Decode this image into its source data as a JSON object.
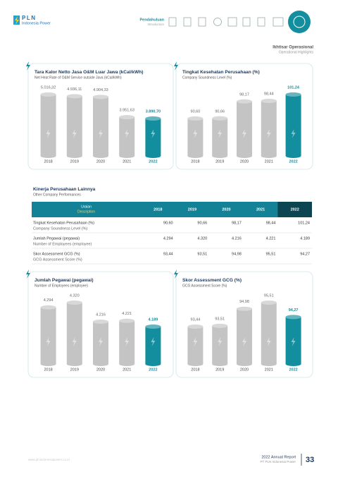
{
  "header": {
    "logo": "PLN",
    "logo_sub": "Indonesia Power",
    "section": "Pendahuluan",
    "section_en": "Introduction",
    "page_title": "Ikhtisar Operasional",
    "page_title_en": "Operational Highlights"
  },
  "chart_data": [
    {
      "type": "bar",
      "title": "Tara Kalor Netto Jasa O&M Luar Jawa (kCal/kWh)",
      "subtitle": "Net Heat Rate of O&M Service outside Java (kCal/kWh)",
      "categories": [
        "2018",
        "2019",
        "2020",
        "2021",
        "2022"
      ],
      "values": [
        5016.32,
        4936.11,
        4904.33,
        3951.63,
        3890.7
      ],
      "value_labels": [
        "5.016,32",
        "4.936,11",
        "4.904,33",
        "3.951,63",
        "3.890,70"
      ],
      "colors": [
        "#c4c4c4",
        "#c4c4c4",
        "#c4c4c4",
        "#c4c4c4",
        "#138e9e"
      ]
    },
    {
      "type": "bar",
      "title": "Tingkat Kesehatan Perusahaan (%)",
      "subtitle": "Company Soundness Level (%)",
      "categories": [
        "2018",
        "2019",
        "2020",
        "2021",
        "2022"
      ],
      "values": [
        90.6,
        90.66,
        98.17,
        98.44,
        101.24
      ],
      "value_labels": [
        "90,60",
        "90,66",
        "98,17",
        "98,44",
        "101,24"
      ],
      "colors": [
        "#c4c4c4",
        "#c4c4c4",
        "#c4c4c4",
        "#c4c4c4",
        "#138e9e"
      ]
    },
    {
      "type": "bar",
      "title": "Jumlah Pegawai (pegawai)",
      "subtitle": "Number of Employees (employee)",
      "categories": [
        "2018",
        "2019",
        "2020",
        "2021",
        "2022"
      ],
      "values": [
        4294,
        4320,
        4216,
        4221,
        4189
      ],
      "value_labels": [
        "4.294",
        "4.320",
        "4.216",
        "4.221",
        "4.189"
      ],
      "colors": [
        "#c4c4c4",
        "#c4c4c4",
        "#c4c4c4",
        "#c4c4c4",
        "#138e9e"
      ]
    },
    {
      "type": "bar",
      "title": "Skor Assessment GCG (%)",
      "subtitle": "GCG Assessment Score (%)",
      "categories": [
        "2018",
        "2019",
        "2020",
        "2021",
        "2022"
      ],
      "values": [
        93.44,
        93.51,
        94.98,
        95.51,
        94.27
      ],
      "value_labels": [
        "93,44",
        "93,51",
        "94,98",
        "95,51",
        "94,27"
      ],
      "colors": [
        "#c4c4c4",
        "#c4c4c4",
        "#c4c4c4",
        "#c4c4c4",
        "#138e9e"
      ]
    }
  ],
  "table": {
    "title": "Kinerja Perusahaan Lainnya",
    "subtitle": "Other Company Performances",
    "description_header": "Uraian",
    "description_header_en": "Description",
    "columns": [
      "2018",
      "2019",
      "2020",
      "2021",
      "2022"
    ],
    "rows": [
      {
        "label": "Tingkat Kesehatan Perusahaan (%)",
        "sublabel": "Company Soundness Level (%)",
        "cells": [
          "90,60",
          "90,66",
          "98,17",
          "98,44",
          "101,24"
        ]
      },
      {
        "label": "Jumlah Pegawai (pegawai)",
        "sublabel": "Number of Employees (employee)",
        "cells": [
          "4.294",
          "4.320",
          "4.216",
          "4.221",
          "4.189"
        ]
      },
      {
        "label": "Skor Assessment GCG (%)",
        "sublabel": "GCG Assessment Score (%)",
        "cells": [
          "93,44",
          "93,51",
          "94,98",
          "95,51",
          "94,27"
        ]
      }
    ]
  },
  "footer": {
    "website": "www.plnindonesiapower.co.id",
    "report": "2022 Annual Report",
    "company": "PT PLN Indonesia Power",
    "page": "33"
  }
}
